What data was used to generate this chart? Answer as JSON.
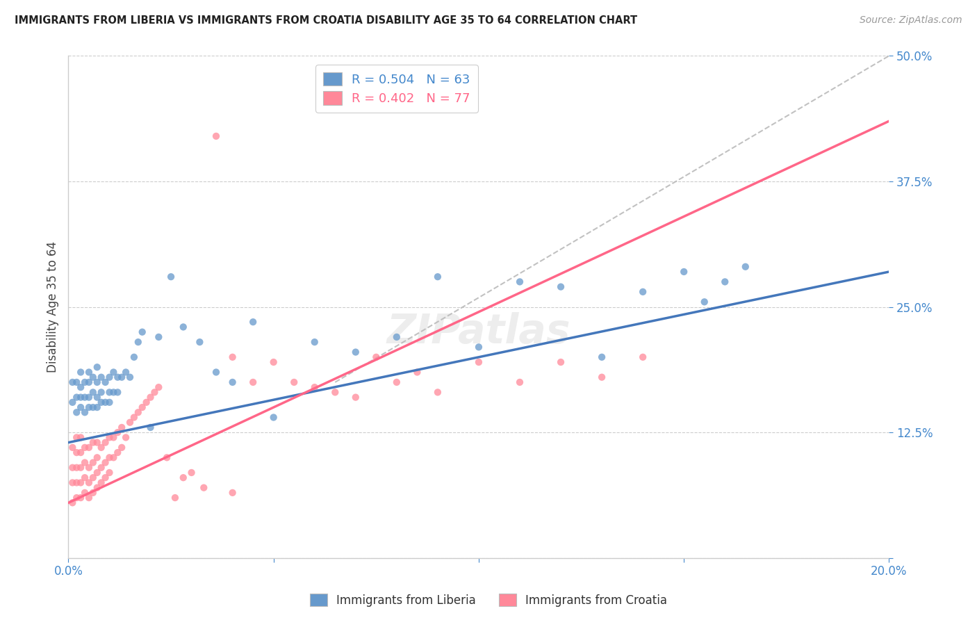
{
  "title": "IMMIGRANTS FROM LIBERIA VS IMMIGRANTS FROM CROATIA DISABILITY AGE 35 TO 64 CORRELATION CHART",
  "source": "Source: ZipAtlas.com",
  "ylabel": "Disability Age 35 to 64",
  "legend_liberia": "Immigrants from Liberia",
  "legend_croatia": "Immigrants from Croatia",
  "R_liberia": 0.504,
  "N_liberia": 63,
  "R_croatia": 0.402,
  "N_croatia": 77,
  "xlim": [
    0.0,
    0.2
  ],
  "ylim": [
    0.0,
    0.5
  ],
  "yticks": [
    0.0,
    0.125,
    0.25,
    0.375,
    0.5
  ],
  "ytick_labels": [
    "",
    "12.5%",
    "25.0%",
    "37.5%",
    "50.0%"
  ],
  "xticks": [
    0.0,
    0.05,
    0.1,
    0.15,
    0.2
  ],
  "xtick_labels": [
    "0.0%",
    "",
    "",
    "",
    "20.0%"
  ],
  "color_liberia": "#6699CC",
  "color_croatia": "#FF8899",
  "color_liberia_line": "#4477BB",
  "color_croatia_line": "#FF6688",
  "color_gray_dashed": "#BBBBBB",
  "axis_color": "#4488CC",
  "background_color": "#FFFFFF",
  "liberia_x": [
    0.001,
    0.001,
    0.002,
    0.002,
    0.002,
    0.003,
    0.003,
    0.003,
    0.003,
    0.004,
    0.004,
    0.004,
    0.005,
    0.005,
    0.005,
    0.005,
    0.006,
    0.006,
    0.006,
    0.007,
    0.007,
    0.007,
    0.007,
    0.008,
    0.008,
    0.008,
    0.009,
    0.009,
    0.01,
    0.01,
    0.01,
    0.011,
    0.011,
    0.012,
    0.012,
    0.013,
    0.014,
    0.015,
    0.016,
    0.017,
    0.018,
    0.02,
    0.022,
    0.025,
    0.028,
    0.032,
    0.036,
    0.04,
    0.045,
    0.05,
    0.06,
    0.07,
    0.08,
    0.09,
    0.1,
    0.11,
    0.12,
    0.13,
    0.14,
    0.15,
    0.155,
    0.16,
    0.165
  ],
  "liberia_y": [
    0.155,
    0.175,
    0.145,
    0.16,
    0.175,
    0.15,
    0.16,
    0.17,
    0.185,
    0.145,
    0.16,
    0.175,
    0.15,
    0.16,
    0.175,
    0.185,
    0.15,
    0.165,
    0.18,
    0.15,
    0.16,
    0.175,
    0.19,
    0.155,
    0.165,
    0.18,
    0.155,
    0.175,
    0.155,
    0.165,
    0.18,
    0.165,
    0.185,
    0.165,
    0.18,
    0.18,
    0.185,
    0.18,
    0.2,
    0.215,
    0.225,
    0.13,
    0.22,
    0.28,
    0.23,
    0.215,
    0.185,
    0.175,
    0.235,
    0.14,
    0.215,
    0.205,
    0.22,
    0.28,
    0.21,
    0.275,
    0.27,
    0.2,
    0.265,
    0.285,
    0.255,
    0.275,
    0.29
  ],
  "croatia_x": [
    0.001,
    0.001,
    0.001,
    0.001,
    0.002,
    0.002,
    0.002,
    0.002,
    0.002,
    0.003,
    0.003,
    0.003,
    0.003,
    0.003,
    0.004,
    0.004,
    0.004,
    0.004,
    0.005,
    0.005,
    0.005,
    0.005,
    0.006,
    0.006,
    0.006,
    0.006,
    0.007,
    0.007,
    0.007,
    0.007,
    0.008,
    0.008,
    0.008,
    0.009,
    0.009,
    0.009,
    0.01,
    0.01,
    0.01,
    0.011,
    0.011,
    0.012,
    0.012,
    0.013,
    0.013,
    0.014,
    0.015,
    0.016,
    0.017,
    0.018,
    0.019,
    0.02,
    0.021,
    0.022,
    0.024,
    0.026,
    0.028,
    0.03,
    0.033,
    0.036,
    0.04,
    0.04,
    0.045,
    0.05,
    0.055,
    0.06,
    0.065,
    0.07,
    0.075,
    0.08,
    0.085,
    0.09,
    0.1,
    0.11,
    0.12,
    0.13,
    0.14
  ],
  "croatia_y": [
    0.055,
    0.075,
    0.09,
    0.11,
    0.06,
    0.075,
    0.09,
    0.105,
    0.12,
    0.06,
    0.075,
    0.09,
    0.105,
    0.12,
    0.065,
    0.08,
    0.095,
    0.11,
    0.06,
    0.075,
    0.09,
    0.11,
    0.065,
    0.08,
    0.095,
    0.115,
    0.07,
    0.085,
    0.1,
    0.115,
    0.075,
    0.09,
    0.11,
    0.08,
    0.095,
    0.115,
    0.085,
    0.1,
    0.12,
    0.1,
    0.12,
    0.105,
    0.125,
    0.11,
    0.13,
    0.12,
    0.135,
    0.14,
    0.145,
    0.15,
    0.155,
    0.16,
    0.165,
    0.17,
    0.1,
    0.06,
    0.08,
    0.085,
    0.07,
    0.42,
    0.065,
    0.2,
    0.175,
    0.195,
    0.175,
    0.17,
    0.165,
    0.16,
    0.2,
    0.175,
    0.185,
    0.165,
    0.195,
    0.175,
    0.195,
    0.18,
    0.2
  ],
  "liberia_line_x": [
    0.0,
    0.2
  ],
  "liberia_line_y": [
    0.115,
    0.285
  ],
  "croatia_line_x": [
    0.0,
    0.2
  ],
  "croatia_line_y": [
    0.055,
    0.435
  ],
  "gray_line_x": [
    0.065,
    0.2
  ],
  "gray_line_y": [
    0.175,
    0.5
  ]
}
